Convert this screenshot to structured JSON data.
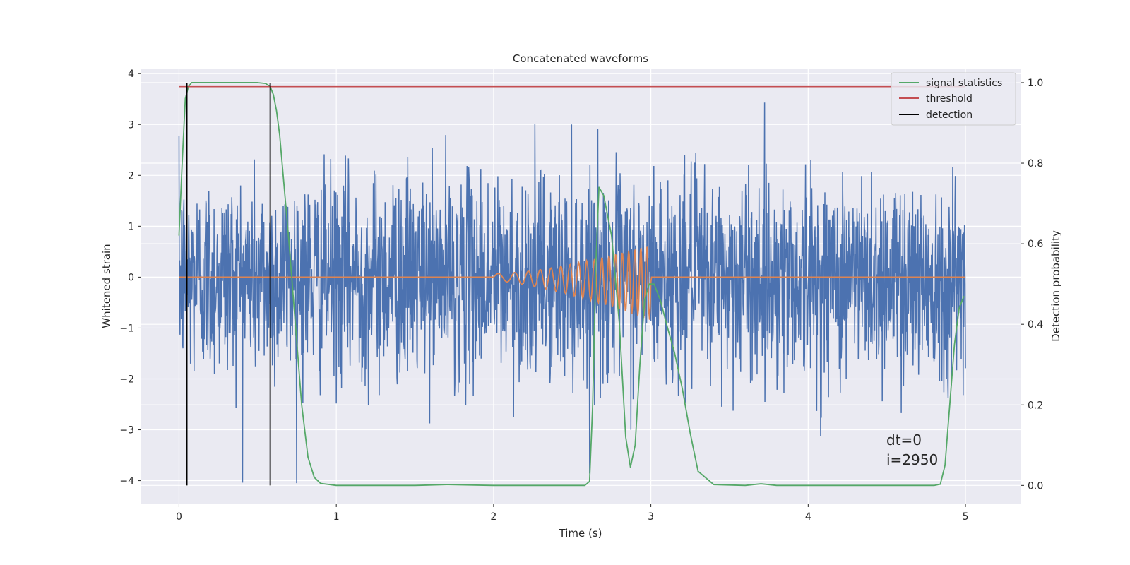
{
  "chart_data": {
    "type": "line",
    "title": "Concatenated waveforms",
    "xlabel": "Time (s)",
    "ylabel": "Whitened strain",
    "y2label": "Detection probability",
    "xlim": [
      -0.24,
      5.35
    ],
    "ylim": [
      -4.45,
      4.1
    ],
    "y2lim": [
      -0.045,
      1.035
    ],
    "xticks": [
      0,
      1,
      2,
      3,
      4,
      5
    ],
    "xtick_labels": [
      "0",
      "1",
      "2",
      "3",
      "4",
      "5"
    ],
    "yticks": [
      -4,
      -3,
      -2,
      -1,
      0,
      1,
      2,
      3,
      4
    ],
    "ytick_labels": [
      "−4",
      "−3",
      "−2",
      "−1",
      "0",
      "1",
      "2",
      "3",
      "4"
    ],
    "y2ticks": [
      0.0,
      0.2,
      0.4,
      0.6,
      0.8,
      1.0
    ],
    "y2tick_labels": [
      "0.0",
      "0.2",
      "0.4",
      "0.6",
      "0.8",
      "1.0"
    ],
    "grid": true,
    "legend_position": "top-right",
    "legend": [
      {
        "label": "signal statistics",
        "color": "#55a868"
      },
      {
        "label": "threshold",
        "color": "#c44e52"
      },
      {
        "label": "detection",
        "color": "#000000"
      }
    ],
    "colors": {
      "noise": "#4c72b0",
      "injected_signal": "#dd8452",
      "signal_statistics": "#55a868",
      "threshold": "#c44e52",
      "detection": "#000000",
      "axes_background": "#eaeaf2",
      "grid": "#ffffff"
    },
    "noise": {
      "x_start": 0,
      "x_end": 5,
      "sigma": 1.0
    },
    "injected_signal": {
      "x_start": 2.0,
      "x_end": 3.0,
      "amp_start": 0.07,
      "amp_end": 0.75,
      "freq_start": 8,
      "freq_end": 28
    },
    "threshold": {
      "value": 0.99,
      "x_start": 0,
      "x_end": 5
    },
    "detections": [
      0.05,
      0.58
    ],
    "signal_statistics": {
      "x": [
        0,
        0.02,
        0.04,
        0.06,
        0.08,
        0.1,
        0.15,
        0.3,
        0.45,
        0.5,
        0.55,
        0.58,
        0.6,
        0.62,
        0.64,
        0.66,
        0.7,
        0.74,
        0.78,
        0.82,
        0.86,
        0.9,
        1.0,
        1.5,
        1.7,
        2.0,
        2.5,
        2.58,
        2.61,
        2.63,
        2.65,
        2.67,
        2.7,
        2.75,
        2.8,
        2.84,
        2.87,
        2.9,
        2.93,
        2.96,
        2.99,
        3.02,
        3.06,
        3.1,
        3.15,
        3.2,
        3.25,
        3.3,
        3.4,
        3.6,
        3.7,
        3.8,
        4.0,
        4.5,
        4.8,
        4.84,
        4.87,
        4.9,
        4.93,
        4.96,
        4.99
      ],
      "y": [
        0.62,
        0.8,
        0.96,
        0.99,
        1.0,
        1.0,
        1.0,
        1.0,
        1.0,
        1.0,
        0.998,
        0.99,
        0.97,
        0.93,
        0.87,
        0.78,
        0.6,
        0.4,
        0.2,
        0.07,
        0.02,
        0.005,
        0.0,
        0.0,
        0.002,
        0.0,
        0.0,
        0.0,
        0.01,
        0.2,
        0.55,
        0.74,
        0.72,
        0.62,
        0.4,
        0.12,
        0.045,
        0.1,
        0.3,
        0.46,
        0.5,
        0.5,
        0.46,
        0.4,
        0.33,
        0.24,
        0.13,
        0.035,
        0.002,
        0.0,
        0.004,
        0.0,
        0.0,
        0.0,
        0.0,
        0.003,
        0.05,
        0.2,
        0.35,
        0.44,
        0.47
      ]
    },
    "annotations": [
      "dt=0",
      "i=2950"
    ]
  }
}
